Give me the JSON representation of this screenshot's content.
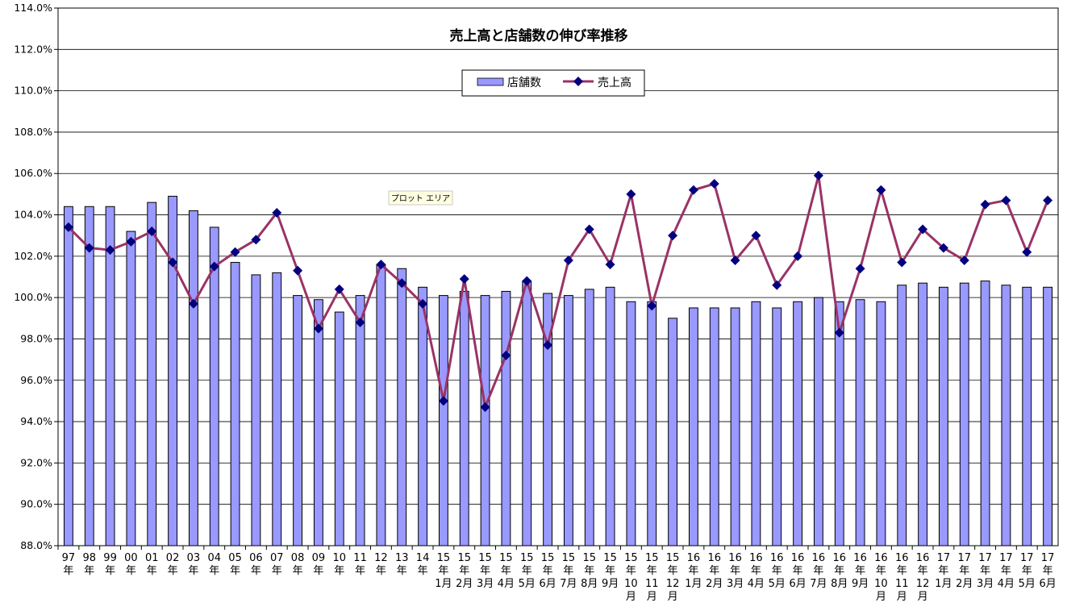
{
  "chart_data": {
    "type": "bar+line",
    "title": "売上高と店舗数の伸び率推移",
    "y_axis": {
      "min": 88,
      "max": 114,
      "step": 2,
      "tick_labels": [
        "88.0%",
        "90.0%",
        "92.0%",
        "94.0%",
        "96.0%",
        "98.0%",
        "100.0%",
        "102.0%",
        "104.0%",
        "106.0%",
        "108.0%",
        "110.0%",
        "112.0%",
        "114.0%"
      ]
    },
    "grid": true,
    "legend": {
      "placement": "top-center",
      "entries": [
        "店舗数",
        "売上高"
      ]
    },
    "plot_area_label": "プロット エリア",
    "categories": [
      {
        "y": "97",
        "u": "年",
        "m": ""
      },
      {
        "y": "98",
        "u": "年",
        "m": ""
      },
      {
        "y": "99",
        "u": "年",
        "m": ""
      },
      {
        "y": "00",
        "u": "年",
        "m": ""
      },
      {
        "y": "01",
        "u": "年",
        "m": ""
      },
      {
        "y": "02",
        "u": "年",
        "m": ""
      },
      {
        "y": "03",
        "u": "年",
        "m": ""
      },
      {
        "y": "04",
        "u": "年",
        "m": ""
      },
      {
        "y": "05",
        "u": "年",
        "m": ""
      },
      {
        "y": "06",
        "u": "年",
        "m": ""
      },
      {
        "y": "07",
        "u": "年",
        "m": ""
      },
      {
        "y": "08",
        "u": "年",
        "m": ""
      },
      {
        "y": "09",
        "u": "年",
        "m": ""
      },
      {
        "y": "10",
        "u": "年",
        "m": ""
      },
      {
        "y": "11",
        "u": "年",
        "m": ""
      },
      {
        "y": "12",
        "u": "年",
        "m": ""
      },
      {
        "y": "13",
        "u": "年",
        "m": ""
      },
      {
        "y": "14",
        "u": "年",
        "m": ""
      },
      {
        "y": "15",
        "u": "年",
        "m": "1月"
      },
      {
        "y": "15",
        "u": "年",
        "m": "2月"
      },
      {
        "y": "15",
        "u": "年",
        "m": "3月"
      },
      {
        "y": "15",
        "u": "年",
        "m": "4月"
      },
      {
        "y": "15",
        "u": "年",
        "m": "5月"
      },
      {
        "y": "15",
        "u": "年",
        "m": "6月"
      },
      {
        "y": "15",
        "u": "年",
        "m": "7月"
      },
      {
        "y": "15",
        "u": "年",
        "m": "8月"
      },
      {
        "y": "15",
        "u": "年",
        "m": "9月"
      },
      {
        "y": "15",
        "u": "年",
        "m": "10\n月"
      },
      {
        "y": "15",
        "u": "年",
        "m": "11\n月"
      },
      {
        "y": "15",
        "u": "年",
        "m": "12\n月"
      },
      {
        "y": "16",
        "u": "年",
        "m": "1月"
      },
      {
        "y": "16",
        "u": "年",
        "m": "2月"
      },
      {
        "y": "16",
        "u": "年",
        "m": "3月"
      },
      {
        "y": "16",
        "u": "年",
        "m": "4月"
      },
      {
        "y": "16",
        "u": "年",
        "m": "5月"
      },
      {
        "y": "16",
        "u": "年",
        "m": "6月"
      },
      {
        "y": "16",
        "u": "年",
        "m": "7月"
      },
      {
        "y": "16",
        "u": "年",
        "m": "8月"
      },
      {
        "y": "16",
        "u": "年",
        "m": "9月"
      },
      {
        "y": "16",
        "u": "年",
        "m": "10\n月"
      },
      {
        "y": "16",
        "u": "年",
        "m": "11\n月"
      },
      {
        "y": "16",
        "u": "年",
        "m": "12\n月"
      },
      {
        "y": "17",
        "u": "年",
        "m": "1月"
      },
      {
        "y": "17",
        "u": "年",
        "m": "2月"
      },
      {
        "y": "17",
        "u": "年",
        "m": "3月"
      },
      {
        "y": "17",
        "u": "年",
        "m": "4月"
      },
      {
        "y": "17",
        "u": "年",
        "m": "5月"
      },
      {
        "y": "17",
        "u": "年",
        "m": "6月"
      }
    ],
    "series": [
      {
        "name": "店舗数",
        "kind": "bar",
        "color": "#9999ff",
        "values": [
          104.4,
          104.4,
          104.4,
          103.2,
          104.6,
          104.9,
          104.2,
          103.4,
          101.7,
          101.1,
          101.2,
          100.1,
          99.9,
          99.3,
          100.1,
          101.6,
          101.4,
          100.5,
          100.1,
          100.3,
          100.1,
          100.3,
          100.8,
          100.2,
          100.1,
          100.4,
          100.5,
          99.8,
          99.8,
          99.0,
          99.5,
          99.5,
          99.5,
          99.8,
          99.5,
          99.8,
          100.0,
          99.8,
          99.9,
          99.8,
          100.6,
          100.7,
          100.5,
          100.7,
          100.8,
          100.6,
          100.5,
          100.5
        ]
      },
      {
        "name": "売上高",
        "kind": "line",
        "color": "#993366",
        "marker_color": "#000080",
        "values": [
          103.4,
          102.4,
          102.3,
          102.7,
          103.2,
          101.7,
          99.7,
          101.5,
          102.2,
          102.8,
          104.1,
          101.3,
          98.5,
          100.4,
          98.8,
          101.6,
          100.7,
          99.7,
          95.0,
          100.9,
          94.7,
          97.2,
          100.8,
          97.7,
          101.8,
          103.3,
          101.6,
          105.0,
          99.6,
          103.0,
          105.2,
          105.5,
          101.8,
          103.0,
          100.6,
          102.0,
          105.9,
          98.3,
          101.4,
          105.2,
          101.7,
          103.3,
          102.4,
          101.8,
          104.5,
          104.7,
          102.2,
          104.7
        ]
      }
    ]
  }
}
